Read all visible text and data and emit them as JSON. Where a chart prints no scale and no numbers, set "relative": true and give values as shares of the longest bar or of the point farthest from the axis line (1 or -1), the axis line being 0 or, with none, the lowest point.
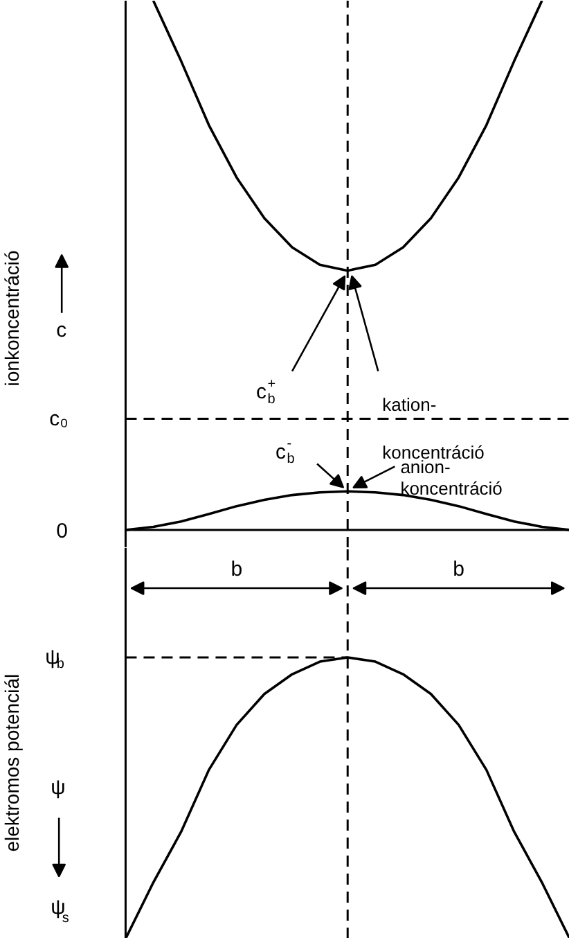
{
  "chart_data": [
    {
      "type": "line",
      "ylabel": "ionkoncentráció",
      "relative": true,
      "categories": [
        null,
        null,
        null,
        null,
        null,
        null,
        null,
        null,
        null,
        null,
        null,
        null,
        null,
        null,
        null,
        null,
        null
      ],
      "series": [
        {
          "color": "#000000",
          "values": [
            null,
            1.0,
            0.886,
            0.765,
            0.666,
            0.589,
            0.534,
            0.501,
            0.49,
            0.501,
            0.534,
            0.589,
            0.666,
            0.765,
            0.886,
            1.0,
            null
          ]
        },
        {
          "color": "#000000",
          "values": [
            0,
            0.006,
            0.016,
            0.03,
            0.045,
            0.057,
            0.066,
            0.071,
            0.073,
            0.071,
            0.066,
            0.057,
            0.045,
            0.03,
            0.016,
            0.006,
            0
          ]
        }
      ],
      "ref_lines": [
        {
          "axis": "y",
          "value": 0.21,
          "label": "c₀",
          "line_style": "dashed"
        }
      ],
      "annotations": [
        "c",
        "0",
        "c$_{b}$$^{+}$",
        "kation-\nkoncentráció",
        "c$_{b}$$^{-}$",
        "anion-\nkoncentráció"
      ]
    },
    {
      "type": "line",
      "ylabel": "elektromos potenciál",
      "relative": true,
      "categories": [
        null,
        null,
        null,
        null,
        null,
        null,
        null,
        null,
        null,
        null,
        null,
        null,
        null,
        null,
        null,
        null,
        null
      ],
      "series": [
        {
          "color": "#000000",
          "values": [
            0,
            0.2,
            0.38,
            0.6,
            0.76,
            0.87,
            0.94,
            0.985,
            1,
            0.985,
            0.94,
            0.87,
            0.76,
            0.6,
            0.38,
            0.2,
            0
          ]
        }
      ],
      "ref_lines": [
        {
          "axis": "y",
          "value": 1,
          "label": "ψ$_{b}$",
          "line_style": "dashed"
        }
      ],
      "annotations": [
        "b",
        "b",
        "ψ",
        "ψ$_{s}$"
      ]
    }
  ]
}
